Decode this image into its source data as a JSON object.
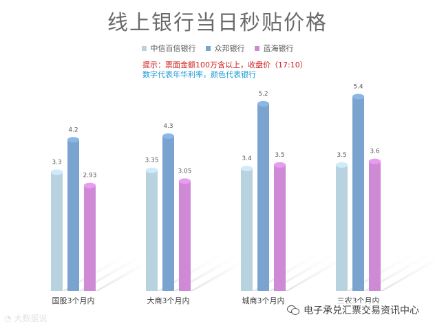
{
  "title": "线上银行当日秒贴价格",
  "notes": {
    "line1": "提示：票面金额100万含以上，收盘价（17:10）",
    "line2": "数字代表年华利率，颜色代表银行"
  },
  "watermarks": {
    "left": "大数据说",
    "right": "电子承兑汇票交易资讯中心",
    "left_icon": "weibo-icon",
    "right_icon": "wechat-icon"
  },
  "colors": {
    "series": [
      "#b9d2df",
      "#7ba3cf",
      "#cf8ad6"
    ],
    "title": "#6b6b6b",
    "note1": "#d11a1a",
    "note2": "#1a9ad6"
  },
  "chart_data": {
    "type": "bar",
    "title": "线上银行当日秒贴价格",
    "categories": [
      "国股3个月内",
      "大商3个月内",
      "城商3个月内",
      "三农3个月内"
    ],
    "series": [
      {
        "name": "中信百信银行",
        "values": [
          3.3,
          3.35,
          3.4,
          3.5
        ]
      },
      {
        "name": "众邦银行",
        "values": [
          4.2,
          4.3,
          5.2,
          5.4
        ]
      },
      {
        "name": "蓝海银行",
        "values": [
          2.93,
          3.05,
          3.5,
          3.6
        ]
      }
    ],
    "ylim": [
      0,
      5.6
    ],
    "legend": "top-center",
    "grid": false
  }
}
